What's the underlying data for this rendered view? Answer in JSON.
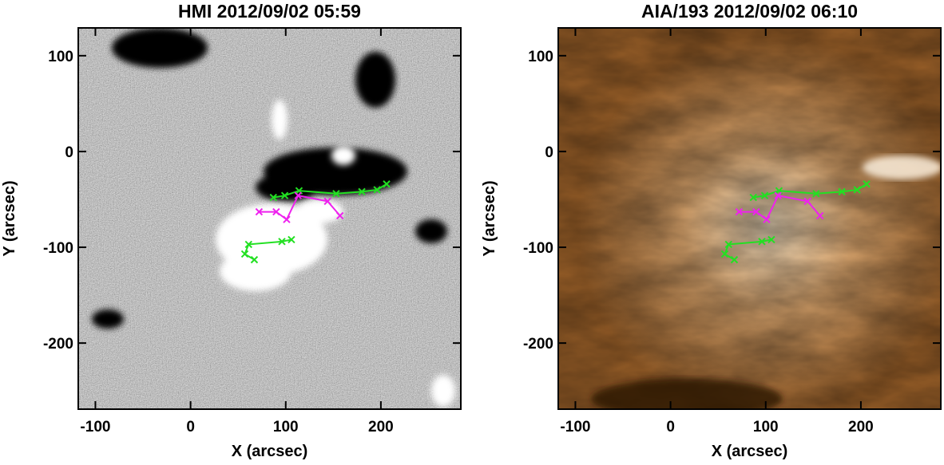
{
  "chart_data": [
    {
      "type": "line",
      "title": "HMI 2012/09/02 05:59",
      "xlabel": "X (arcsec)",
      "ylabel": "Y (arcsec)",
      "xlim": [
        -118,
        284
      ],
      "ylim": [
        -269,
        129
      ],
      "xticks": [
        -100,
        0,
        100,
        200
      ],
      "yticks": [
        -200,
        -100,
        0,
        100
      ],
      "series": [
        {
          "color": "#22e022",
          "x": [
            87,
            99,
            114,
            153,
            180,
            196,
            206
          ],
          "values": [
            -48,
            -46,
            -41,
            -44,
            -42,
            -40,
            -34
          ]
        },
        {
          "color": "#22e022",
          "x": [
            67,
            57,
            61,
            96,
            106
          ],
          "values": [
            -113,
            -107,
            -97,
            -94,
            -92
          ]
        },
        {
          "color": "#ee22ee",
          "x": [
            72,
            90,
            101,
            113,
            144,
            157
          ],
          "values": [
            -63,
            -63,
            -71,
            -46,
            -52,
            -67
          ]
        }
      ]
    },
    {
      "type": "line",
      "title": "AIA/193 2012/09/02 06:10",
      "xlabel": "X (arcsec)",
      "ylabel": "Y (arcsec)",
      "xlim": [
        -118,
        284
      ],
      "ylim": [
        -269,
        129
      ],
      "xticks": [
        -100,
        0,
        100,
        200
      ],
      "yticks": [
        -200,
        -100,
        0,
        100
      ],
      "series": [
        {
          "color": "#22e022",
          "x": [
            87,
            99,
            114,
            153,
            180,
            196,
            206
          ],
          "values": [
            -48,
            -46,
            -41,
            -44,
            -42,
            -40,
            -34
          ]
        },
        {
          "color": "#22e022",
          "x": [
            67,
            57,
            61,
            96,
            106
          ],
          "values": [
            -113,
            -107,
            -97,
            -94,
            -92
          ]
        },
        {
          "color": "#ee22ee",
          "x": [
            72,
            90,
            101,
            113,
            144,
            157
          ],
          "values": [
            -63,
            -63,
            -71,
            -46,
            -52,
            -67
          ]
        }
      ]
    }
  ]
}
